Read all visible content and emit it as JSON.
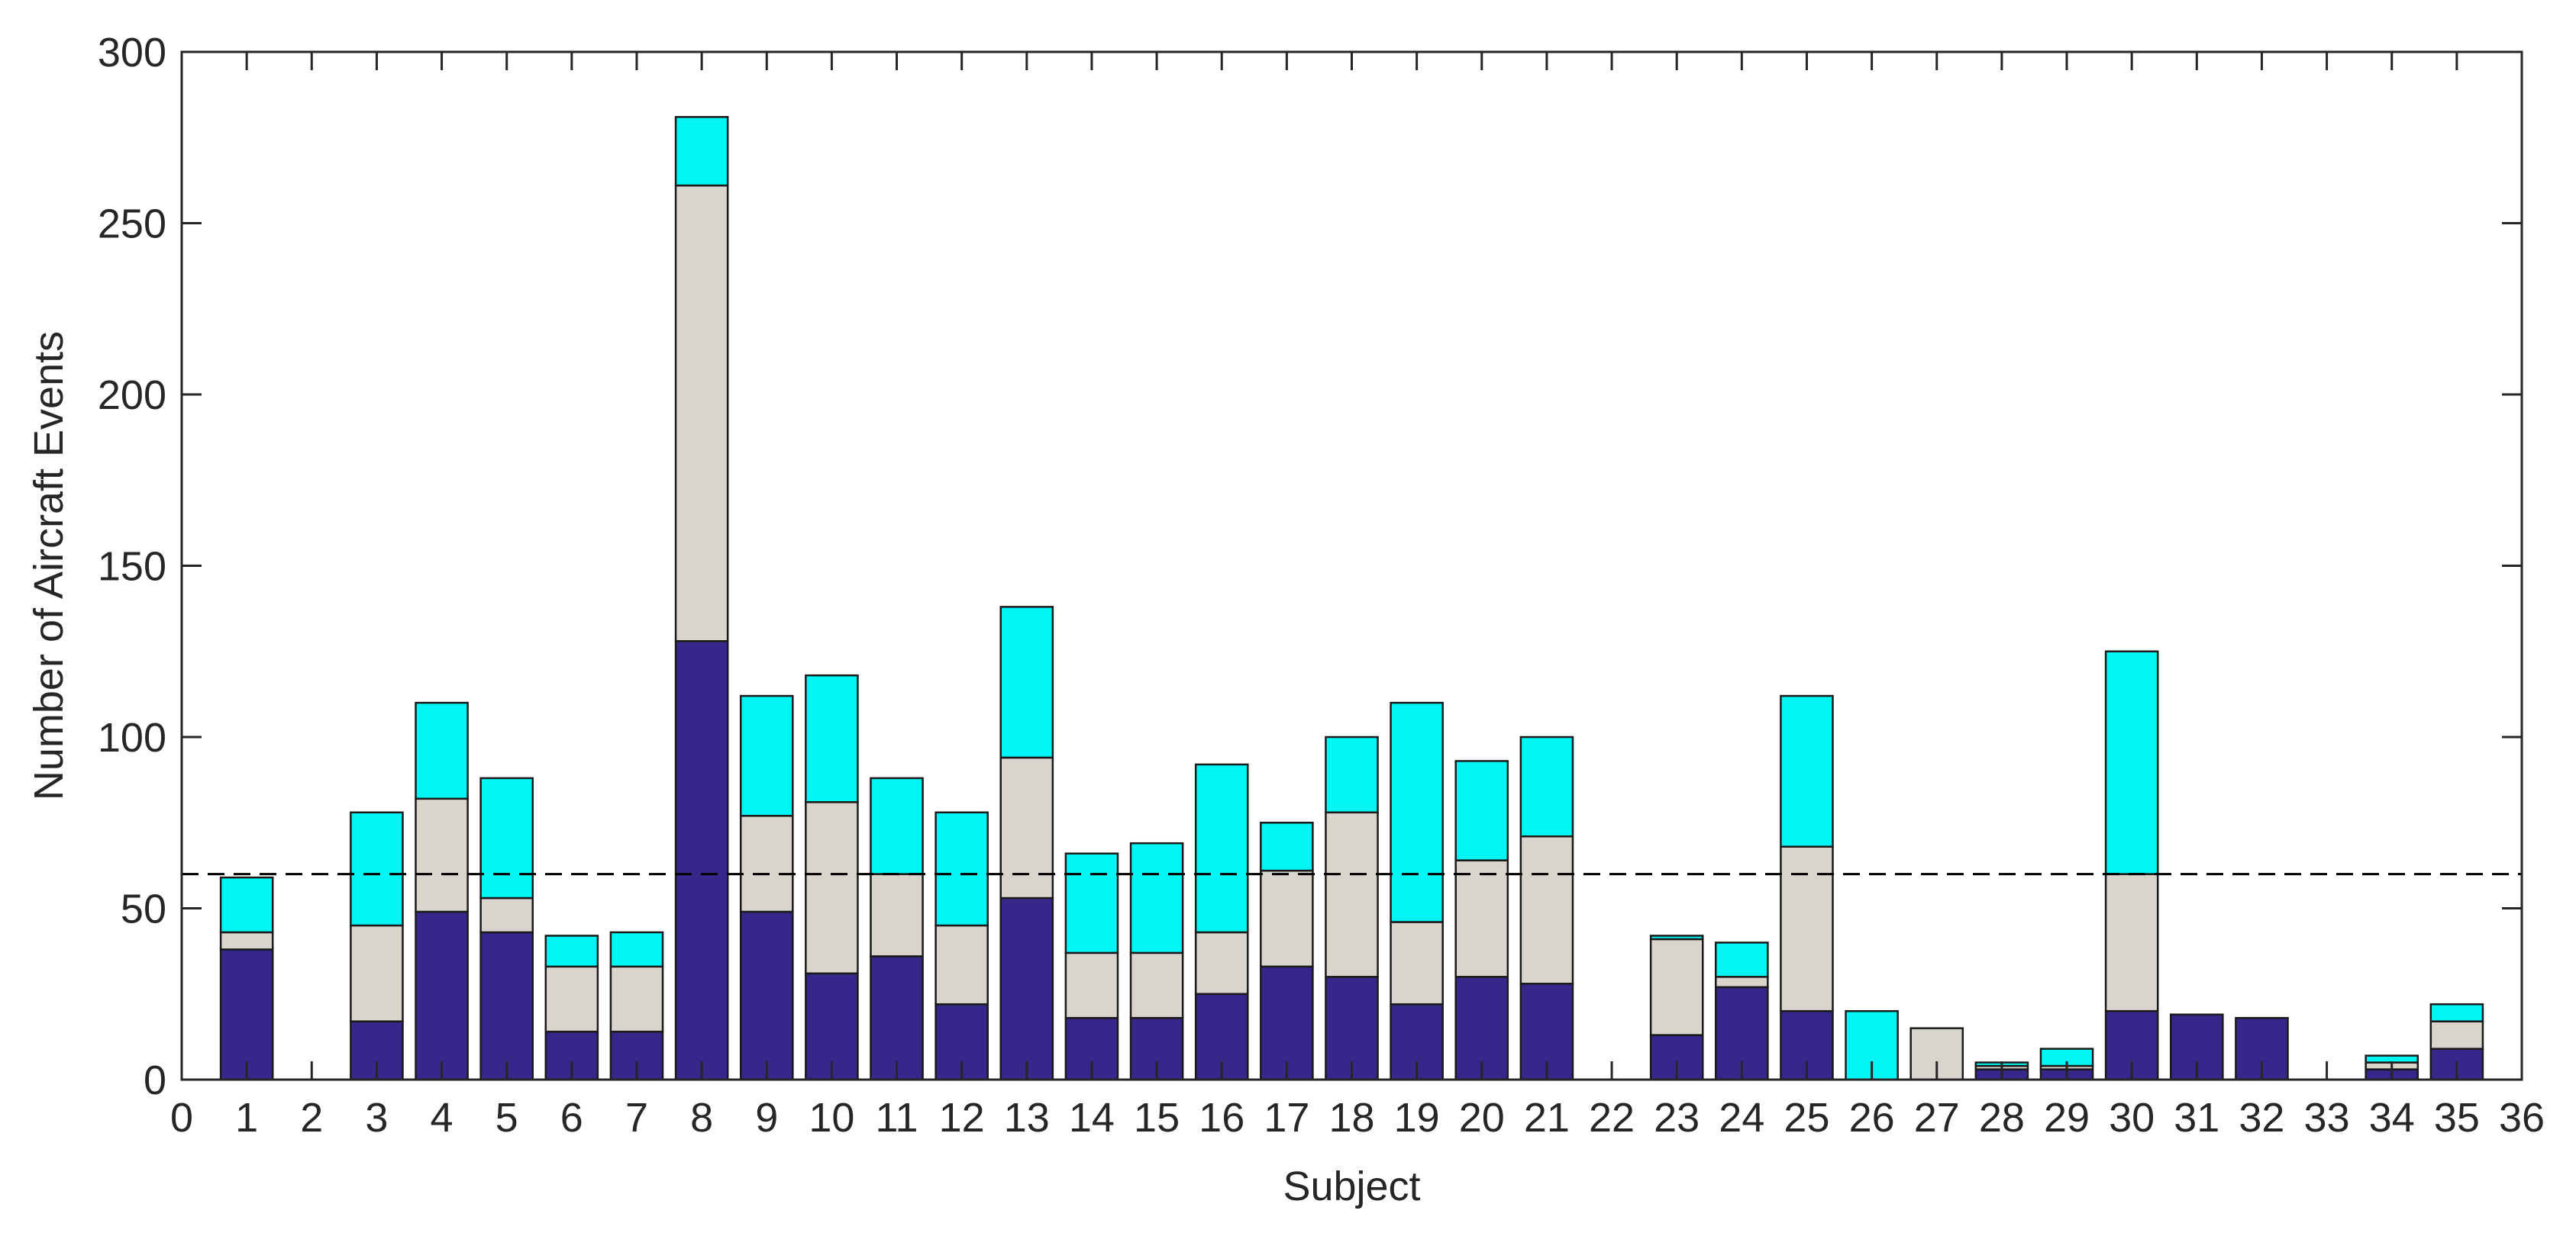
{
  "chart_data": {
    "type": "bar",
    "stacked": true,
    "xlabel": "Subject",
    "ylabel": "Number of Aircraft Events",
    "xlim": [
      0,
      36
    ],
    "ylim": [
      0,
      300
    ],
    "xticks": [
      0,
      1,
      2,
      3,
      4,
      5,
      6,
      7,
      8,
      9,
      10,
      11,
      12,
      13,
      14,
      15,
      16,
      17,
      18,
      19,
      20,
      21,
      22,
      23,
      24,
      25,
      26,
      27,
      28,
      29,
      30,
      31,
      32,
      33,
      34,
      35,
      36
    ],
    "yticks": [
      0,
      50,
      100,
      150,
      200,
      250,
      300
    ],
    "grid": false,
    "reference_line": {
      "y": 60,
      "style": "dashed",
      "color": "#000000"
    },
    "categories": [
      1,
      2,
      3,
      4,
      5,
      6,
      7,
      8,
      9,
      10,
      11,
      12,
      13,
      14,
      15,
      16,
      17,
      18,
      19,
      20,
      21,
      22,
      23,
      24,
      25,
      26,
      27,
      28,
      29,
      30,
      31,
      32,
      33,
      34,
      35
    ],
    "series": [
      {
        "color": "#35288a",
        "values": [
          38,
          0,
          17,
          49,
          43,
          14,
          14,
          128,
          49,
          31,
          36,
          22,
          53,
          18,
          18,
          25,
          33,
          30,
          22,
          30,
          28,
          0,
          13,
          27,
          20,
          0,
          0,
          3,
          3,
          20,
          19,
          18,
          0,
          3,
          9
        ]
      },
      {
        "color": "#d9d4cc",
        "values": [
          5,
          0,
          28,
          33,
          10,
          19,
          19,
          133,
          28,
          50,
          24,
          23,
          41,
          19,
          19,
          18,
          28,
          48,
          24,
          34,
          43,
          0,
          28,
          3,
          48,
          0,
          15,
          1,
          1,
          40,
          0,
          0,
          0,
          2,
          8
        ]
      },
      {
        "color": "#00f5f5",
        "values": [
          16,
          0,
          33,
          28,
          35,
          9,
          10,
          20,
          35,
          37,
          28,
          33,
          44,
          29,
          32,
          49,
          14,
          22,
          64,
          29,
          29,
          0,
          1,
          10,
          44,
          20,
          0,
          1,
          5,
          65,
          0,
          0,
          0,
          2,
          5
        ]
      }
    ]
  }
}
